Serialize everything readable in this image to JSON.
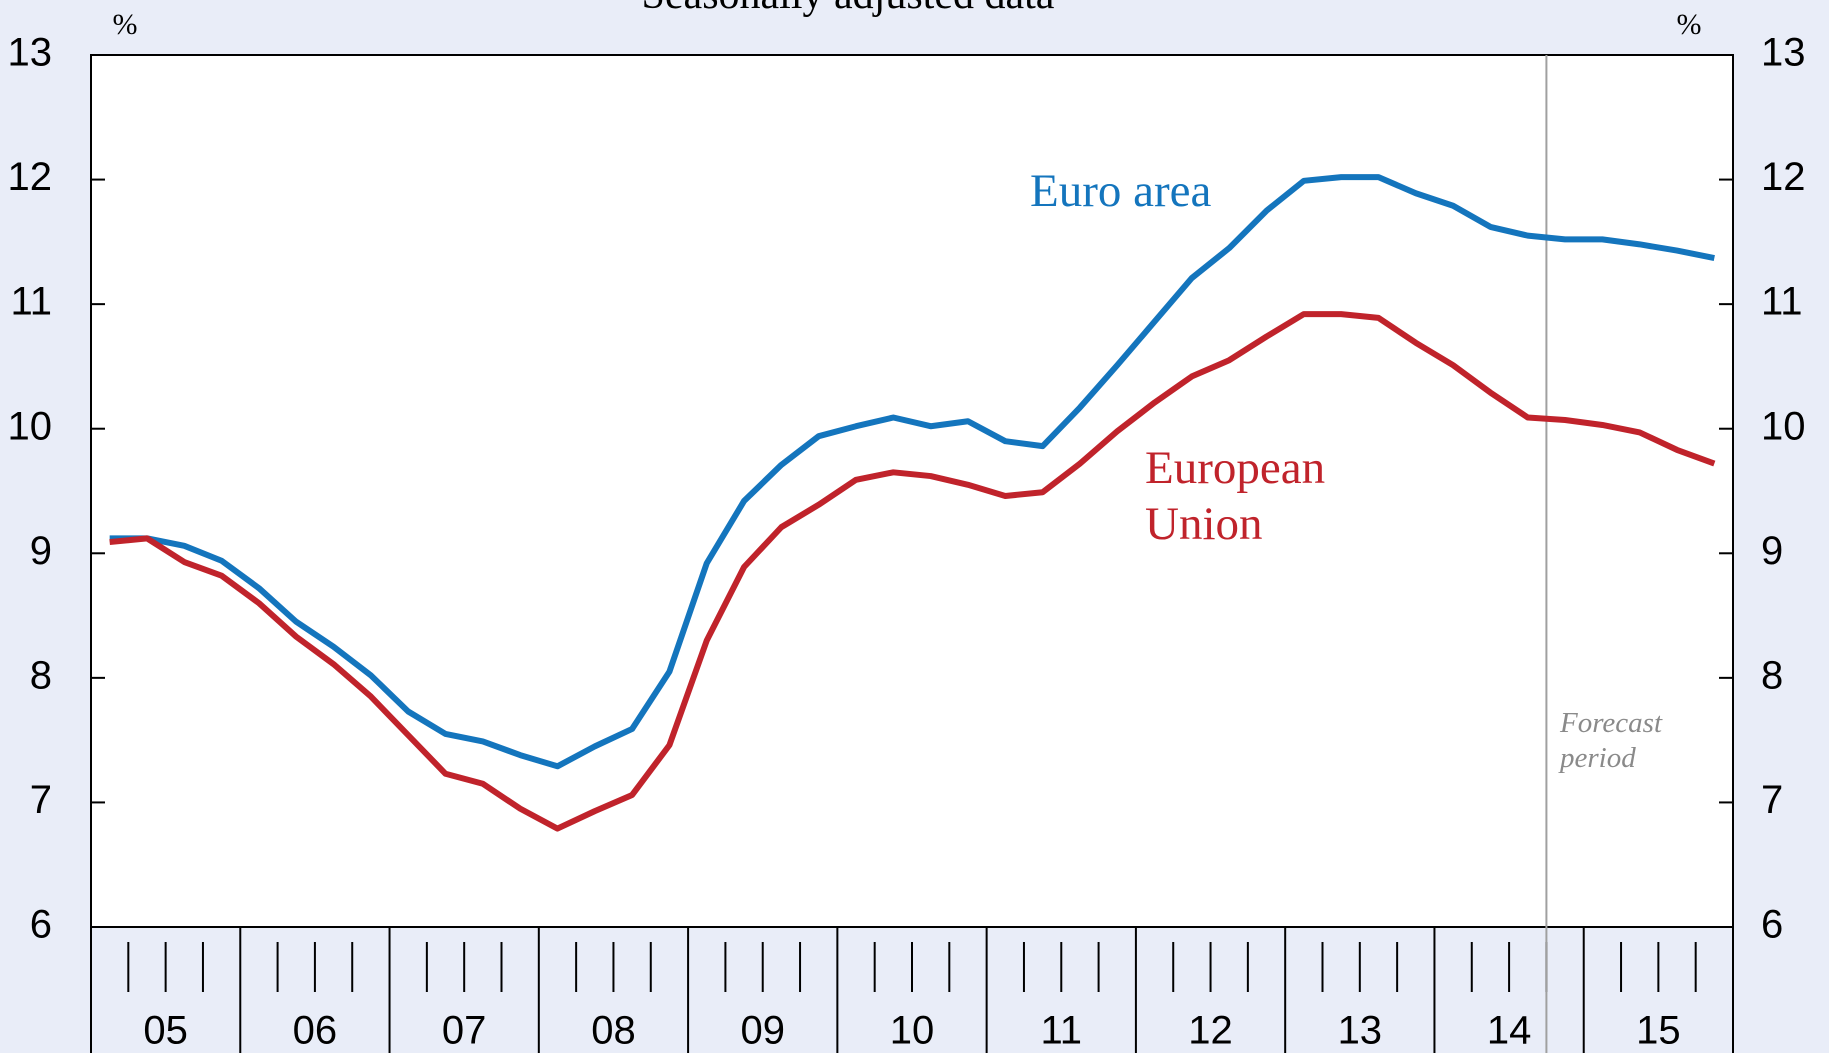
{
  "chart_data": {
    "type": "line",
    "subtitle": "Seasonally adjusted data",
    "y_unit_left": "%",
    "y_unit_right": "%",
    "x": [
      2005.125,
      2005.375,
      2005.625,
      2005.875,
      2006.125,
      2006.375,
      2006.625,
      2006.875,
      2007.125,
      2007.375,
      2007.625,
      2007.875,
      2008.125,
      2008.375,
      2008.625,
      2008.875,
      2009.125,
      2009.375,
      2009.625,
      2009.875,
      2010.125,
      2010.375,
      2010.625,
      2010.875,
      2011.125,
      2011.375,
      2011.625,
      2011.875,
      2012.125,
      2012.375,
      2012.625,
      2012.875,
      2013.125,
      2013.375,
      2013.625,
      2013.875,
      2014.125,
      2014.375,
      2014.625,
      2014.875,
      2015.125,
      2015.375,
      2015.625,
      2015.875
    ],
    "series": [
      {
        "name": "Euro area",
        "color": "#1475bd",
        "values": [
          9.12,
          9.12,
          9.06,
          8.94,
          8.72,
          8.45,
          8.25,
          8.02,
          7.73,
          7.55,
          7.49,
          7.38,
          7.29,
          7.45,
          7.59,
          8.05,
          8.92,
          9.42,
          9.71,
          9.94,
          10.02,
          10.09,
          10.02,
          10.06,
          9.9,
          9.86,
          10.17,
          10.51,
          10.86,
          11.21,
          11.45,
          11.75,
          11.99,
          12.02,
          12.02,
          11.89,
          11.79,
          11.62,
          11.55,
          11.52,
          11.52,
          11.48,
          11.43,
          11.37
        ]
      },
      {
        "name": "European Union",
        "color": "#c0232b",
        "values": [
          9.09,
          9.12,
          8.93,
          8.82,
          8.6,
          8.33,
          8.11,
          7.85,
          7.54,
          7.23,
          7.15,
          6.95,
          6.79,
          6.93,
          7.06,
          7.46,
          8.3,
          8.89,
          9.21,
          9.39,
          9.59,
          9.65,
          9.62,
          9.55,
          9.46,
          9.49,
          9.72,
          9.98,
          10.21,
          10.42,
          10.55,
          10.74,
          10.92,
          10.92,
          10.89,
          10.69,
          10.51,
          10.29,
          10.09,
          10.07,
          10.03,
          9.97,
          9.83,
          9.72
        ]
      }
    ],
    "xlim": [
      2005,
      2016
    ],
    "xticks": [
      {
        "value": 2005.5,
        "label": "05"
      },
      {
        "value": 2006.5,
        "label": "06"
      },
      {
        "value": 2007.5,
        "label": "07"
      },
      {
        "value": 2008.5,
        "label": "08"
      },
      {
        "value": 2009.5,
        "label": "09"
      },
      {
        "value": 2010.5,
        "label": "10"
      },
      {
        "value": 2011.5,
        "label": "11"
      },
      {
        "value": 2012.5,
        "label": "12"
      },
      {
        "value": 2013.5,
        "label": "13"
      },
      {
        "value": 2014.5,
        "label": "14"
      },
      {
        "value": 2015.5,
        "label": "15"
      }
    ],
    "ylim": [
      6,
      13
    ],
    "yticks": [
      6,
      7,
      8,
      9,
      10,
      11,
      12,
      13
    ],
    "y2lim": [
      6,
      13
    ],
    "y2ticks": [
      6,
      7,
      8,
      9,
      10,
      11,
      12,
      13
    ],
    "forecast_start": 2014.75,
    "forecast_label": "Forecast period"
  }
}
